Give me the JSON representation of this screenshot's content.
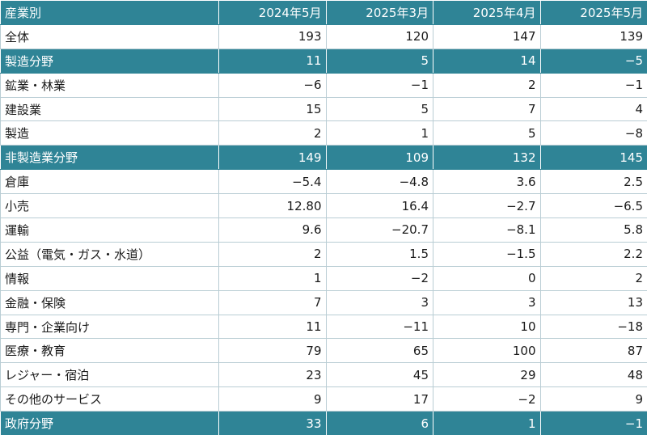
{
  "table": {
    "header": [
      "産業別",
      "2024年5月",
      "2025年3月",
      "2025年4月",
      "2025年5月"
    ],
    "rows": [
      {
        "label": "全体",
        "values": [
          "193",
          "120",
          "147",
          "139"
        ],
        "section": false
      },
      {
        "label": "製造分野",
        "values": [
          "11",
          "5",
          "14",
          "−5"
        ],
        "section": true
      },
      {
        "label": "鉱業・林業",
        "values": [
          "−6",
          "−1",
          "2",
          "−1"
        ],
        "section": false
      },
      {
        "label": "建設業",
        "values": [
          "15",
          "5",
          "7",
          "4"
        ],
        "section": false
      },
      {
        "label": "製造",
        "values": [
          "2",
          "1",
          "5",
          "−8"
        ],
        "section": false
      },
      {
        "label": "非製造業分野",
        "values": [
          "149",
          "109",
          "132",
          "145"
        ],
        "section": true
      },
      {
        "label": "倉庫",
        "values": [
          "−5.4",
          "−4.8",
          "3.6",
          "2.5"
        ],
        "section": false
      },
      {
        "label": "小売",
        "values": [
          "12.80",
          "16.4",
          "−2.7",
          "−6.5"
        ],
        "section": false
      },
      {
        "label": "運輸",
        "values": [
          "9.6",
          "−20.7",
          "−8.1",
          "5.8"
        ],
        "section": false
      },
      {
        "label": "公益（電気・ガス・水道）",
        "values": [
          "2",
          "1.5",
          "−1.5",
          "2.2"
        ],
        "section": false
      },
      {
        "label": "情報",
        "values": [
          "1",
          "−2",
          "0",
          "2"
        ],
        "section": false
      },
      {
        "label": "金融・保険",
        "values": [
          "7",
          "3",
          "3",
          "13"
        ],
        "section": false
      },
      {
        "label": "専門・企業向け",
        "values": [
          "11",
          "−11",
          "10",
          "−18"
        ],
        "section": false
      },
      {
        "label": "医療・教育",
        "values": [
          "79",
          "65",
          "100",
          "87"
        ],
        "section": false
      },
      {
        "label": "レジャー・宿泊",
        "values": [
          "23",
          "45",
          "29",
          "48"
        ],
        "section": false
      },
      {
        "label": "その他のサービス",
        "values": [
          "9",
          "17",
          "−2",
          "9"
        ],
        "section": false
      },
      {
        "label": "政府分野",
        "values": [
          "33",
          "6",
          "1",
          "−1"
        ],
        "section": true
      }
    ]
  },
  "colors": {
    "header_bg": "#2f8496",
    "header_text": "#ffffff",
    "body_text": "#1a1a1a",
    "row_border": "#b9cdd4"
  }
}
